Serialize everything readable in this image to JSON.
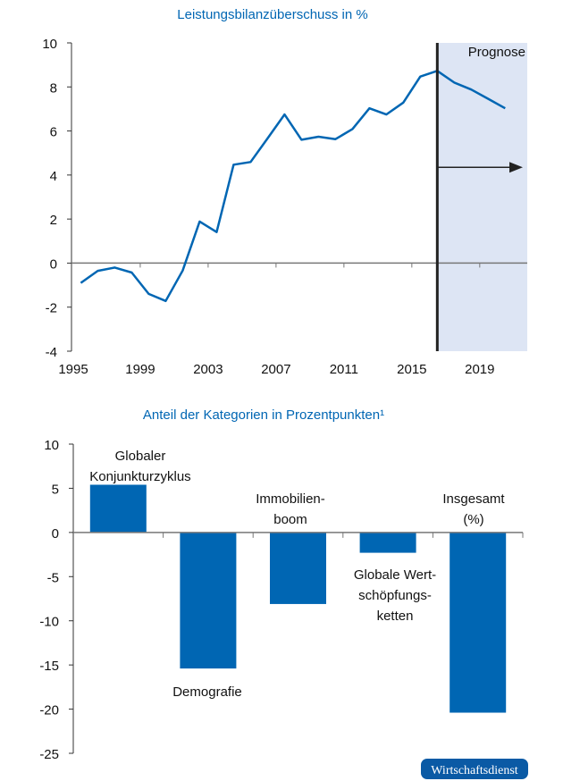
{
  "colors": {
    "line": "#0066b3",
    "bar": "#0066b3",
    "title": "#0066b3",
    "forecast_shade": "#dde5f4",
    "axis": "#777777",
    "badge": "#0a5aa5"
  },
  "chart_data": [
    {
      "type": "line",
      "title": "Leistungsbilanzüberschuss in %",
      "xlabel": "",
      "ylabel": "",
      "x": [
        1995,
        1996,
        1997,
        1998,
        1999,
        2000,
        2001,
        2002,
        2003,
        2004,
        2005,
        2006,
        2007,
        2008,
        2009,
        2010,
        2011,
        2012,
        2013,
        2014,
        2015,
        2016,
        2017,
        2018,
        2019,
        2020
      ],
      "series": [
        {
          "values": [
            -0.9,
            -0.35,
            -0.2,
            -0.43,
            -1.4,
            -1.72,
            -0.34,
            1.89,
            1.41,
            4.47,
            4.59,
            5.66,
            6.75,
            5.6,
            5.74,
            5.63,
            6.09,
            7.03,
            6.75,
            7.29,
            8.47,
            8.73,
            8.2,
            7.88,
            7.46,
            7.03
          ]
        }
      ],
      "x_tick_labels": [
        "1995",
        "1999",
        "2003",
        "2007",
        "2011",
        "2015",
        "2019"
      ],
      "y_tick_labels": [
        "10",
        "8",
        "6",
        "4",
        "2",
        "0",
        "-2",
        "-4"
      ],
      "ylim": [
        -4,
        10
      ],
      "grid": false,
      "forecast": {
        "label": "Prognose",
        "start_year": 2016
      }
    },
    {
      "type": "bar",
      "title": "Anteil der Kategorien in Prozentpunkten¹",
      "xlabel": "",
      "ylabel": "",
      "categories": [
        "Globaler Konjunkturzyklus",
        "Demografie",
        "Immobilien-boom",
        "Globale Wert-schöpfungs-ketten",
        "Insgesamt (%)"
      ],
      "category_label_lines": [
        [
          "Globaler",
          "Konjunkturzyklus"
        ],
        [
          "Demografie"
        ],
        [
          "Immobilien-",
          "boom"
        ],
        [
          "Globale Wert-",
          "schöpfungs-",
          "ketten"
        ],
        [
          "Insgesamt",
          "(%)"
        ]
      ],
      "values": [
        5.4,
        -15.4,
        -8.1,
        -2.3,
        -20.4
      ],
      "y_tick_labels": [
        "10",
        "5",
        "0",
        "-5",
        "-10",
        "-15",
        "-20",
        "-25"
      ],
      "ylim": [
        -25,
        10
      ],
      "grid": false
    }
  ],
  "badge": {
    "text": "Wirtschaftsdienst"
  }
}
